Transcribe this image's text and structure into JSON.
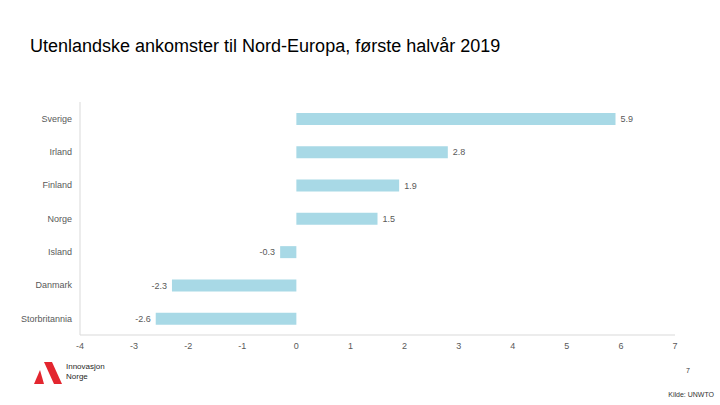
{
  "chart_data": {
    "type": "bar",
    "title": "Utenlandske ankomster til Nord-Europa, første halvår 2019",
    "orientation": "horizontal",
    "categories": [
      "Sverige",
      "Irland",
      "Finland",
      "Norge",
      "Island",
      "Danmark",
      "Storbritannia"
    ],
    "values": [
      5.9,
      2.8,
      1.9,
      1.5,
      -0.3,
      -2.3,
      -2.6
    ],
    "color": "#a8d9e6",
    "xlim": [
      -4,
      7
    ],
    "xticks": [
      -4,
      -3,
      -2,
      -1,
      0,
      1,
      2,
      3,
      4,
      5,
      6,
      7
    ],
    "grid": false,
    "data_labels": true
  },
  "slide": {
    "logo": [
      "Innovasjon",
      "Norge"
    ],
    "page_number": 7,
    "source": "Kilde: UNWTO"
  }
}
